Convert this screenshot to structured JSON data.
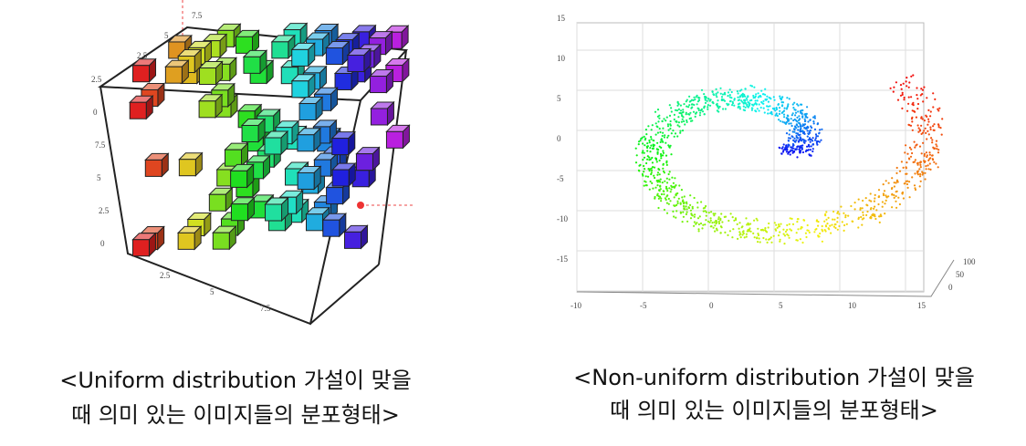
{
  "left_figure": {
    "axis_labels_top": [
      "7.5",
      "5",
      "2.5"
    ],
    "axis_labels_left": [
      "2.5",
      "0",
      "7.5",
      "5",
      "2.5",
      "0"
    ],
    "axis_labels_bottom": [
      "2.5",
      "5",
      "7.5"
    ],
    "caption": [
      "<Uniform distribution 가설이 맞을",
      "때 의미 있는 이미지들의 분포형태>"
    ]
  },
  "right_figure": {
    "y_labels": [
      "15",
      "10",
      "5",
      "0",
      "-5",
      "-10",
      "-15"
    ],
    "x_labels": [
      "-10",
      "-5",
      "0",
      "5",
      "10",
      "15"
    ],
    "z_labels": [
      "100",
      "50",
      "0"
    ],
    "caption": [
      "<Non-uniform distribution 가설이 맞을",
      "때 의미 있는 이미지들의 분포형태>"
    ]
  }
}
